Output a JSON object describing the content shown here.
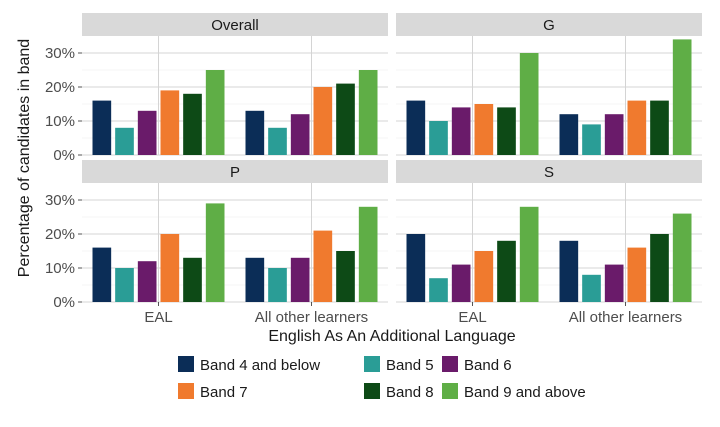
{
  "chart_data": {
    "type": "bar",
    "facet_layout": "2x2",
    "xlabel": "English As An Additional Language",
    "ylabel": "Percentage of candidates in band",
    "ylim": [
      0,
      35
    ],
    "yticks": [
      0,
      10,
      20,
      30
    ],
    "ytick_labels": [
      "0%",
      "10%",
      "20%",
      "30%"
    ],
    "grid": true,
    "legend_position": "bottom",
    "categories": [
      "EAL",
      "All other learners"
    ],
    "series": [
      {
        "name": "Band 4 and below",
        "color": "#0b2d57"
      },
      {
        "name": "Band 5",
        "color": "#2a9d96"
      },
      {
        "name": "Band 6",
        "color": "#6a1b6a"
      },
      {
        "name": "Band 7",
        "color": "#f07a2e"
      },
      {
        "name": "Band 8",
        "color": "#0d4a16"
      },
      {
        "name": "Band 9 and above",
        "color": "#5fae46"
      }
    ],
    "panels": [
      {
        "title": "Overall",
        "values": [
          [
            16,
            8,
            13,
            19,
            18,
            25
          ],
          [
            13,
            8,
            12,
            20,
            21,
            25
          ]
        ]
      },
      {
        "title": "G",
        "values": [
          [
            16,
            10,
            14,
            15,
            14,
            30
          ],
          [
            12,
            9,
            12,
            16,
            16,
            34
          ]
        ]
      },
      {
        "title": "P",
        "values": [
          [
            16,
            10,
            12,
            20,
            13,
            29
          ],
          [
            13,
            10,
            13,
            21,
            15,
            28
          ]
        ]
      },
      {
        "title": "S",
        "values": [
          [
            20,
            7,
            11,
            15,
            18,
            28
          ],
          [
            18,
            8,
            11,
            16,
            20,
            26
          ]
        ]
      }
    ]
  }
}
